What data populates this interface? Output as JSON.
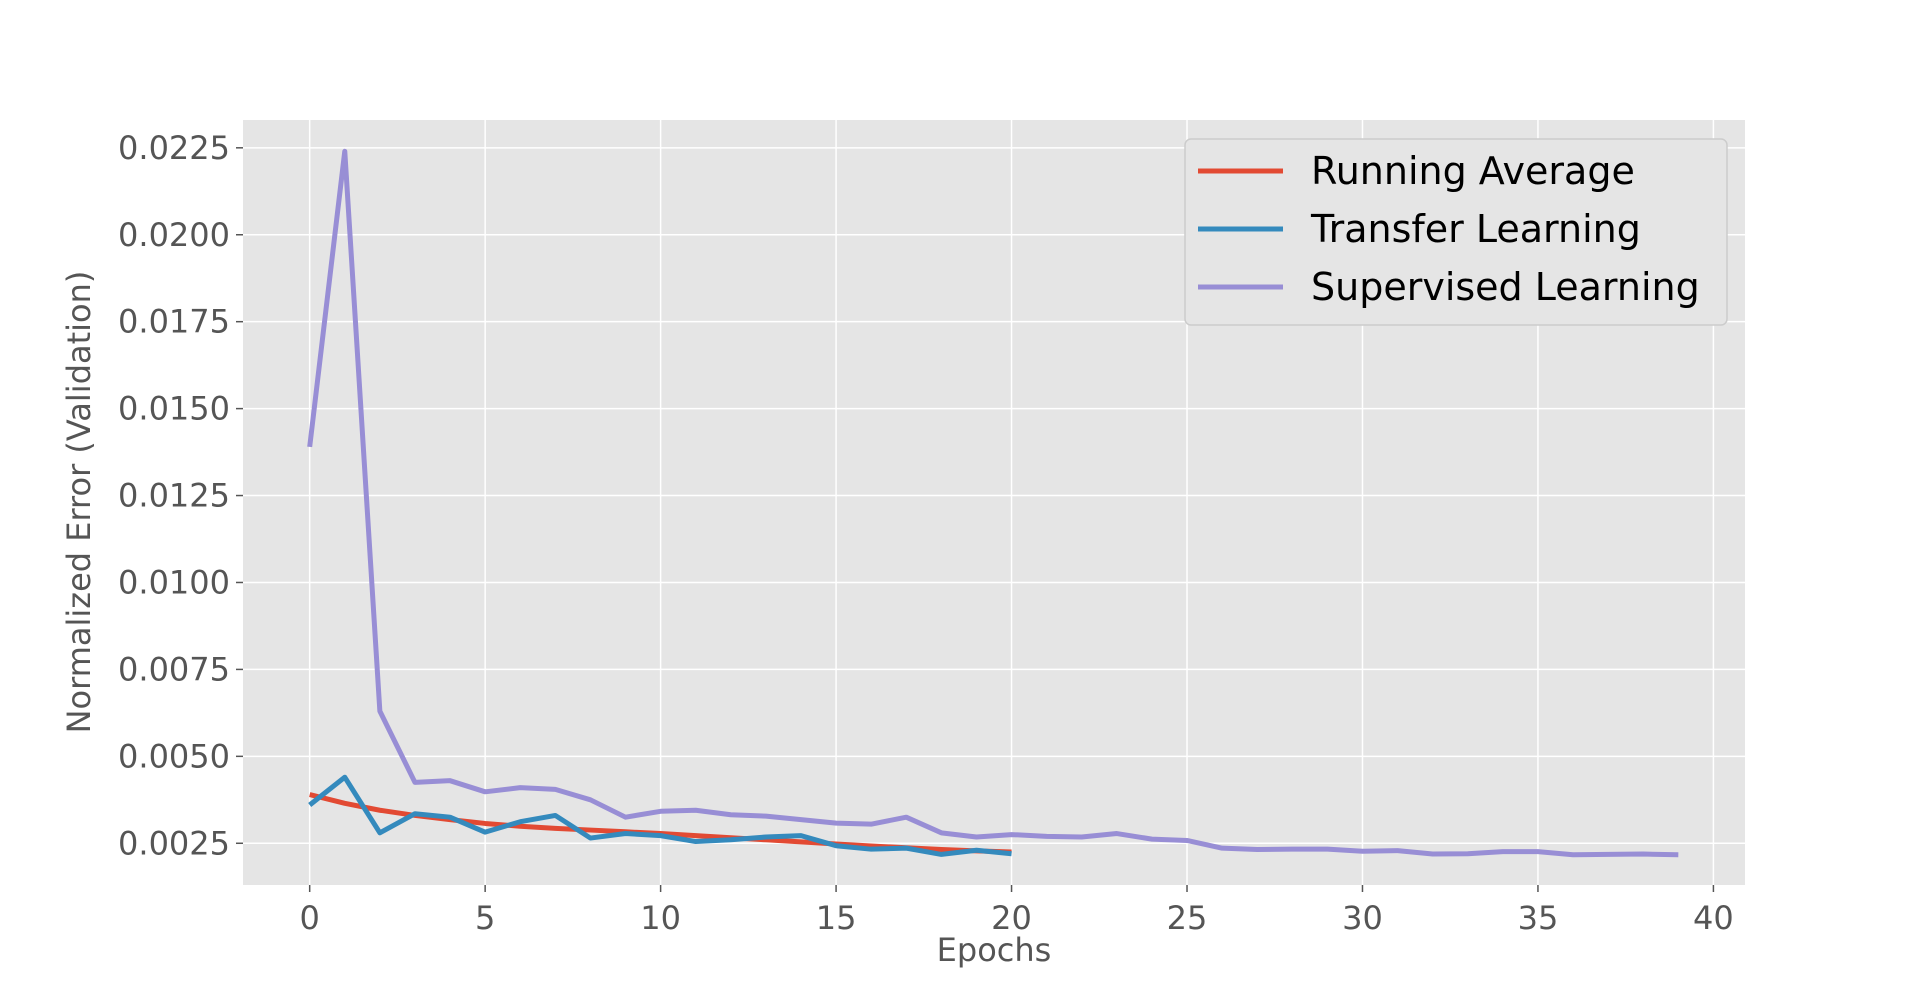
{
  "chart_data": {
    "type": "line",
    "title": "",
    "xlabel": "Epochs",
    "ylabel": "Normalized Error (Validation)",
    "xlim": [
      -1.9,
      40.9
    ],
    "ylim": [
      0.0013,
      0.0233
    ],
    "x_ticks": [
      0,
      5,
      10,
      15,
      20,
      25,
      30,
      35,
      40
    ],
    "x_tick_labels": [
      "0",
      "5",
      "10",
      "15",
      "20",
      "25",
      "30",
      "35",
      "40"
    ],
    "y_ticks": [
      0.0025,
      0.005,
      0.0075,
      0.01,
      0.0125,
      0.015,
      0.0175,
      0.02,
      0.0225
    ],
    "y_tick_labels": [
      "0.0025",
      "0.0050",
      "0.0075",
      "0.0100",
      "0.0125",
      "0.0150",
      "0.0175",
      "0.0200",
      "0.0225"
    ],
    "grid": true,
    "legend_position": "top-right",
    "series": [
      {
        "name": "Running Average",
        "color": "#E24A33",
        "x": [
          0,
          1,
          2,
          3,
          4,
          5,
          6,
          7,
          8,
          9,
          10,
          11,
          12,
          13,
          14,
          15,
          16,
          17,
          18,
          19,
          20
        ],
        "values": [
          0.0039,
          0.00365,
          0.00345,
          0.0033,
          0.00318,
          0.00307,
          0.00299,
          0.00293,
          0.00288,
          0.00283,
          0.00278,
          0.00272,
          0.00266,
          0.0026,
          0.00254,
          0.00248,
          0.00242,
          0.00237,
          0.00232,
          0.00228,
          0.00225
        ]
      },
      {
        "name": "Transfer Learning",
        "color": "#348ABD",
        "x": [
          0,
          1,
          2,
          3,
          4,
          5,
          6,
          7,
          8,
          9,
          10,
          11,
          12,
          13,
          14,
          15,
          16,
          17,
          18,
          19,
          20
        ],
        "values": [
          0.0036,
          0.0044,
          0.0028,
          0.00335,
          0.00325,
          0.00282,
          0.00312,
          0.0033,
          0.00265,
          0.00278,
          0.00272,
          0.00255,
          0.0026,
          0.00268,
          0.00272,
          0.00243,
          0.00233,
          0.00236,
          0.00218,
          0.0023,
          0.0022
        ]
      },
      {
        "name": "Supervised Learning",
        "color": "#988ED5",
        "x": [
          0,
          1,
          2,
          3,
          4,
          5,
          6,
          7,
          8,
          9,
          10,
          11,
          12,
          13,
          14,
          15,
          16,
          17,
          18,
          19,
          20,
          21,
          22,
          23,
          24,
          25,
          26,
          27,
          28,
          29,
          30,
          31,
          32,
          33,
          34,
          35,
          36,
          37,
          38,
          39
        ],
        "values": [
          0.0139,
          0.0224,
          0.0063,
          0.00425,
          0.0043,
          0.00398,
          0.0041,
          0.00405,
          0.00375,
          0.00325,
          0.00342,
          0.00345,
          0.00332,
          0.00328,
          0.00318,
          0.00308,
          0.00305,
          0.00325,
          0.0028,
          0.00268,
          0.00275,
          0.0027,
          0.00268,
          0.00278,
          0.00262,
          0.00258,
          0.00236,
          0.00232,
          0.00233,
          0.00233,
          0.00227,
          0.00229,
          0.00219,
          0.0022,
          0.00226,
          0.00226,
          0.00217,
          0.00218,
          0.00219,
          0.00217
        ]
      }
    ]
  }
}
